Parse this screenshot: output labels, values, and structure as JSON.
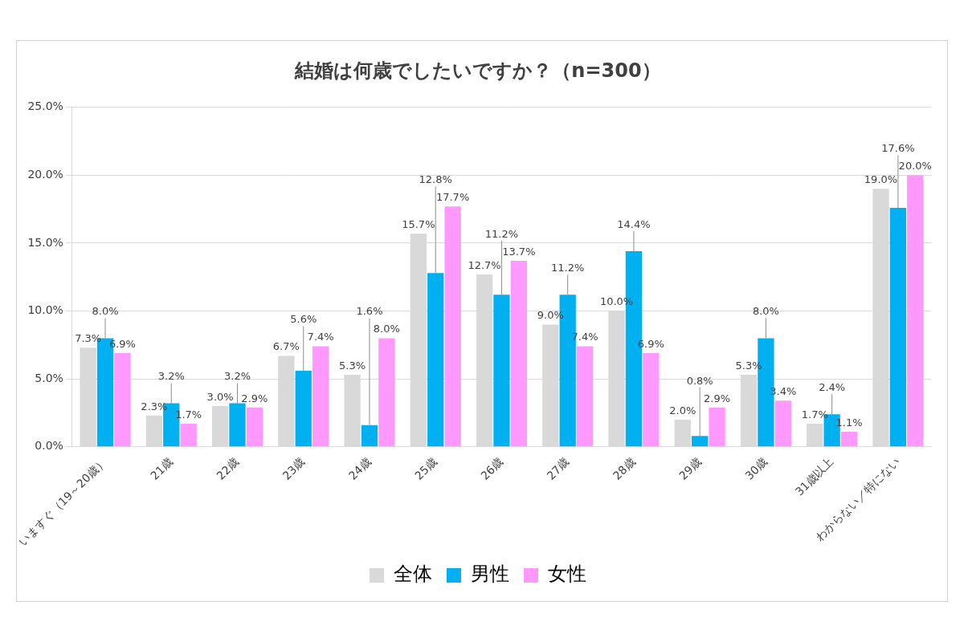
{
  "chart_data": {
    "type": "bar",
    "title": "結婚は何歳でしたいですか？（n=300）",
    "categories": [
      "いますぐ（19～20歳）",
      "21歳",
      "22歳",
      "23歳",
      "24歳",
      "25歳",
      "26歳",
      "27歳",
      "28歳",
      "29歳",
      "30歳",
      "31歳以上",
      "わからない／特にない"
    ],
    "series": [
      {
        "name": "全体",
        "color": "#d9d9d9",
        "values": [
          7.3,
          2.3,
          3.0,
          6.7,
          5.3,
          15.7,
          12.7,
          9.0,
          10.0,
          2.0,
          5.3,
          1.7,
          19.0
        ],
        "value_labels": [
          "7.3%",
          "2.3%",
          "3.0%",
          "6.7%",
          "5.3%",
          "15.7%",
          "12.7%",
          "9.0%",
          "10.0%",
          "2.0%",
          "5.3%",
          "1.7%",
          "19.0%"
        ]
      },
      {
        "name": "男性",
        "color": "#00b0f0",
        "values": [
          8.0,
          3.2,
          3.2,
          5.6,
          1.6,
          12.8,
          11.2,
          11.2,
          14.4,
          0.8,
          8.0,
          2.4,
          17.6
        ],
        "value_labels": [
          "8.0%",
          "3.2%",
          "3.2%",
          "5.6%",
          "1.6%",
          "12.8%",
          "11.2%",
          "11.2%",
          "14.4%",
          "0.8%",
          "8.0%",
          "2.4%",
          "17.6%"
        ]
      },
      {
        "name": "女性",
        "color": "#ff99ff",
        "values": [
          6.9,
          1.7,
          2.9,
          7.4,
          8.0,
          17.7,
          13.7,
          7.4,
          6.9,
          2.9,
          3.4,
          1.1,
          20.0
        ],
        "value_labels": [
          "6.9%",
          "1.7%",
          "2.9%",
          "7.4%",
          "8.0%",
          "17.7%",
          "13.7%",
          "7.4%",
          "6.9%",
          "2.9%",
          "3.4%",
          "1.1%",
          "20.0%"
        ]
      }
    ],
    "ylim": [
      0,
      25
    ],
    "yticks": [
      {
        "value": 0,
        "label": "0.0%"
      },
      {
        "value": 5,
        "label": "5.0%"
      },
      {
        "value": 10,
        "label": "10.0%"
      },
      {
        "value": 15,
        "label": "15.0%"
      },
      {
        "value": 20,
        "label": "20.0%"
      },
      {
        "value": 25,
        "label": "25.0%"
      }
    ],
    "grid": true,
    "legend": "bottom",
    "data_labels": true
  }
}
